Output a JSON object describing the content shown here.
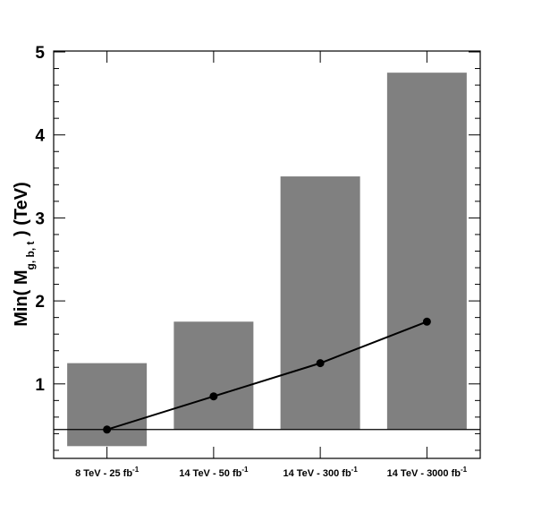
{
  "chart_data": {
    "type": "bar",
    "categories": [
      "8 TeV - 25 fb",
      "14 TeV - 50 fb",
      "14 TeV - 300 fb",
      "14 TeV - 3000 fb"
    ],
    "category_superscript": "-1",
    "bars": [
      {
        "low": 0.25,
        "high": 1.25
      },
      {
        "low": 0.45,
        "high": 1.75
      },
      {
        "low": 0.45,
        "high": 3.5
      },
      {
        "low": 0.45,
        "high": 4.75
      }
    ],
    "line_values": [
      0.45,
      0.85,
      1.25,
      1.75
    ],
    "reference_line": 0.45,
    "ylim": [
      0,
      5
    ],
    "yticks": [
      1,
      2,
      3,
      4,
      5
    ],
    "ylabel": {
      "prefix": "Min( M",
      "subscript": "g, b, t",
      "suffix": " ) (TeV)"
    },
    "colors": {
      "bar": "#808080",
      "line": "#000000",
      "frame": "#000000"
    }
  }
}
